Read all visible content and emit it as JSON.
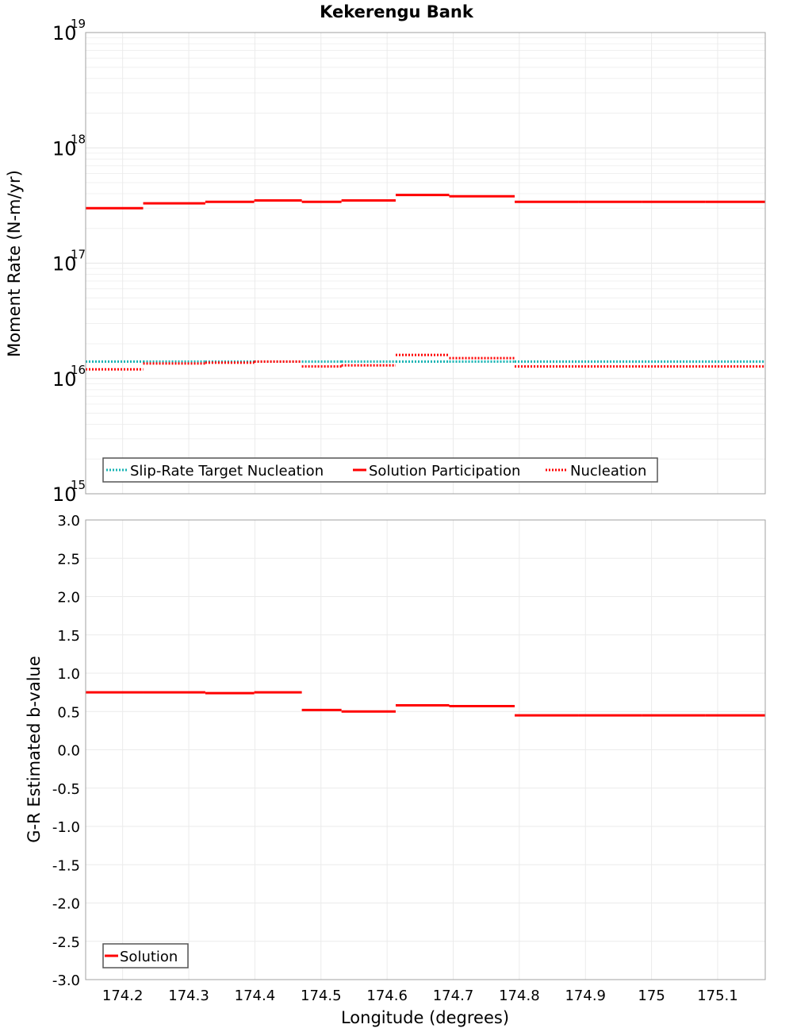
{
  "chart_data": [
    {
      "type": "line",
      "subtype": "step",
      "title": "Kekerengu Bank",
      "xlabel": "Longitude (degrees)",
      "ylabel": "Moment Rate (N-m/yr)",
      "yscale": "log",
      "ylim": [
        1000000000000000.0,
        1e+19
      ],
      "xlim": [
        174.144,
        175.172
      ],
      "y_ticks": [
        "10^15",
        "10^16",
        "10^17",
        "10^18",
        "10^19"
      ],
      "grid": true,
      "legend_position": "bottom-left inside",
      "bin_edges": [
        174.144,
        174.231,
        174.325,
        174.399,
        174.471,
        174.531,
        174.613,
        174.694,
        174.793,
        174.889,
        174.985,
        175.081,
        175.172
      ],
      "series": [
        {
          "name": "Slip-Rate Target Nucleation",
          "style": "dotted",
          "color": "#18b4b4",
          "values": [
            1.4e+16,
            1.4e+16,
            1.4e+16,
            1.4e+16,
            1.4e+16,
            1.4e+16,
            1.4e+16,
            1.4e+16,
            1.4e+16,
            1.4e+16,
            1.4e+16,
            1.4e+16
          ]
        },
        {
          "name": "Solution Participation",
          "style": "solid",
          "color": "#ff0000",
          "values": [
            3e+17,
            3.3e+17,
            3.4e+17,
            3.5e+17,
            3.4e+17,
            3.5e+17,
            3.9e+17,
            3.8e+17,
            3.4e+17,
            3.4e+17,
            3.4e+17,
            3.4e+17
          ]
        },
        {
          "name": "Nucleation",
          "style": "dotted",
          "color": "#ff0000",
          "values": [
            1.2e+16,
            1.35e+16,
            1.37e+16,
            1.4e+16,
            1.27e+16,
            1.3e+16,
            1.6e+16,
            1.5e+16,
            1.27e+16,
            1.27e+16,
            1.27e+16,
            1.27e+16
          ]
        }
      ]
    },
    {
      "type": "line",
      "subtype": "step",
      "title": "",
      "xlabel": "Longitude (degrees)",
      "ylabel": "G-R Estimated b-value",
      "yscale": "linear",
      "ylim": [
        -3.0,
        3.0
      ],
      "xlim": [
        174.144,
        175.172
      ],
      "y_ticks": [
        "3.0",
        "2.5",
        "2.0",
        "1.5",
        "1.0",
        "0.5",
        "0.0",
        "-0.5",
        "-1.0",
        "-1.5",
        "-2.0",
        "-2.5",
        "-3.0"
      ],
      "x_ticks": [
        "174.2",
        "174.3",
        "174.4",
        "174.5",
        "174.6",
        "174.7",
        "174.8",
        "174.9",
        "175",
        "175.1"
      ],
      "grid": true,
      "legend_position": "bottom-left inside",
      "bin_edges": [
        174.144,
        174.231,
        174.325,
        174.399,
        174.471,
        174.531,
        174.613,
        174.694,
        174.793,
        174.889,
        174.985,
        175.081,
        175.172
      ],
      "series": [
        {
          "name": "Solution",
          "style": "solid",
          "color": "#ff0000",
          "values": [
            0.75,
            0.75,
            0.74,
            0.75,
            0.52,
            0.5,
            0.58,
            0.57,
            0.45,
            0.45,
            0.45,
            0.45
          ]
        }
      ]
    }
  ],
  "figure": {
    "title": "Kekerengu Bank",
    "x_axis_label": "Longitude (degrees)",
    "top_panel": {
      "y_axis_label": "Moment Rate (N-m/yr)",
      "y_ticks": [
        {
          "base": "10",
          "exp": "19"
        },
        {
          "base": "10",
          "exp": "18"
        },
        {
          "base": "10",
          "exp": "17"
        },
        {
          "base": "10",
          "exp": "16"
        },
        {
          "base": "10",
          "exp": "15"
        }
      ],
      "legend": [
        {
          "label": "Slip-Rate Target Nucleation",
          "color": "#18b4b4",
          "style": "dotted"
        },
        {
          "label": "Solution Participation",
          "color": "#ff0000",
          "style": "solid"
        },
        {
          "label": "Nucleation",
          "color": "#ff0000",
          "style": "dotted"
        }
      ]
    },
    "bottom_panel": {
      "y_axis_label": "G-R Estimated b-value",
      "legend": [
        {
          "label": "Solution",
          "color": "#ff0000",
          "style": "solid"
        }
      ]
    },
    "x_ticks": [
      "174.2",
      "174.3",
      "174.4",
      "174.5",
      "174.6",
      "174.7",
      "174.8",
      "174.9",
      "175",
      "175.1"
    ]
  }
}
